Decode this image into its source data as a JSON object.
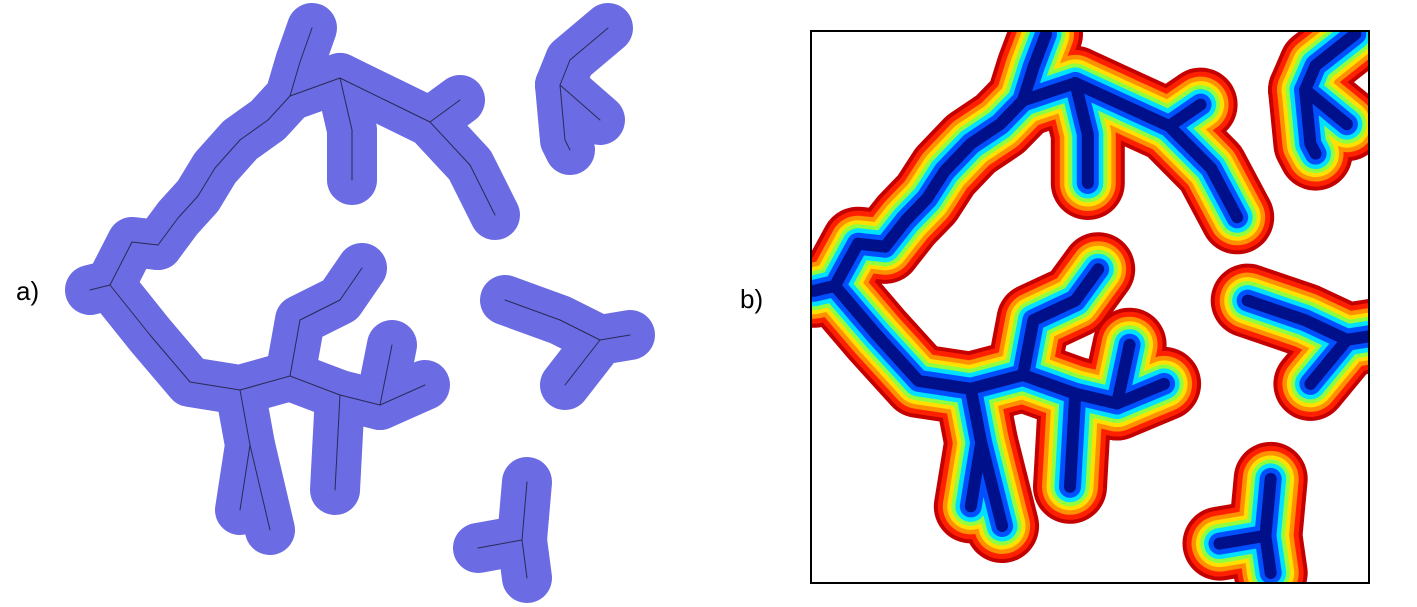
{
  "panels": {
    "a": {
      "label": "a)"
    },
    "b": {
      "label": "b)"
    }
  },
  "colors": {
    "buffer_fill": "#6b6be4",
    "centerline": "#2a2a55",
    "frame": "#000000",
    "heat_outer": "#c40000",
    "heat_red": "#ff2000",
    "heat_orange": "#ff9000",
    "heat_yellow": "#ffe000",
    "heat_green": "#90ff40",
    "heat_cyan": "#00e0ff",
    "heat_blue": "#0050ff",
    "heat_core": "#00108a"
  }
}
